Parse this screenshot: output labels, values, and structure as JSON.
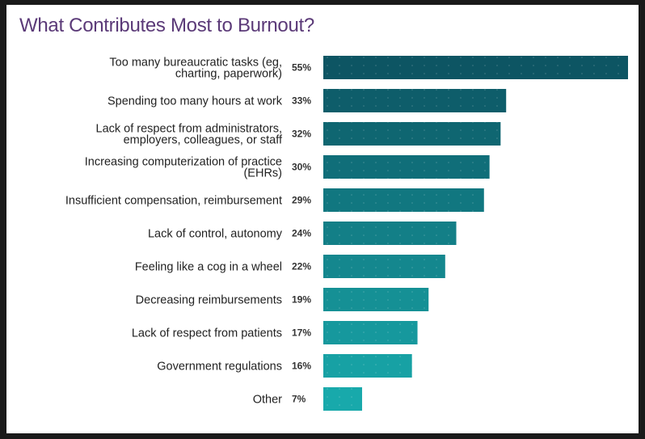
{
  "chart_data": {
    "type": "bar",
    "orientation": "horizontal",
    "title": "What Contributes Most to Burnout?",
    "categories": [
      "Too many bureaucratic tasks (eg, charting, paperwork)",
      "Spending too many hours at work",
      "Lack of respect from administrators, employers, colleagues, or staff",
      "Increasing computerization of practice (EHRs)",
      "Insufficient compensation, reimbursement",
      "Lack of control, autonomy",
      "Feeling like a cog in a wheel",
      "Decreasing reimbursements",
      "Lack of respect from patients",
      "Government regulations",
      "Other"
    ],
    "category_lines": [
      [
        "Too many bureaucratic tasks (eg,",
        "charting, paperwork)"
      ],
      [
        "Spending too many hours at work"
      ],
      [
        "Lack of respect from administrators,",
        "employers, colleagues, or staff"
      ],
      [
        "Increasing computerization of practice",
        "(EHRs)"
      ],
      [
        "Insufficient compensation, reimbursement"
      ],
      [
        "Lack of control, autonomy"
      ],
      [
        "Feeling like a cog in a wheel"
      ],
      [
        "Decreasing reimbursements"
      ],
      [
        "Lack of respect from patients"
      ],
      [
        "Government regulations"
      ],
      [
        "Other"
      ]
    ],
    "values": [
      55,
      33,
      32,
      30,
      29,
      24,
      22,
      19,
      17,
      16,
      7
    ],
    "value_labels": [
      "55%",
      "33%",
      "32%",
      "30%",
      "29%",
      "24%",
      "22%",
      "19%",
      "17%",
      "16%",
      "7%"
    ],
    "unit": "%",
    "xlim": [
      0,
      55
    ],
    "grid": false,
    "colors": {
      "bar_dark": "#0d5563",
      "bar_light": "#18a9ab",
      "title": "#5b3a78"
    }
  }
}
